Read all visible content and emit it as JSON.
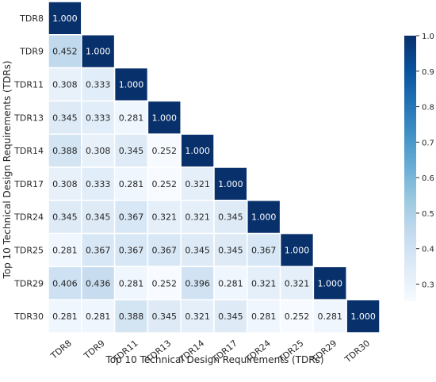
{
  "chart_data": {
    "type": "heatmap",
    "matrix_shape": "lower-triangular",
    "labels": [
      "TDR8",
      "TDR9",
      "TDR11",
      "TDR13",
      "TDR14",
      "TDR17",
      "TDR24",
      "TDR25",
      "TDR29",
      "TDR30"
    ],
    "values": [
      [
        1.0
      ],
      [
        0.452,
        1.0
      ],
      [
        0.308,
        0.333,
        1.0
      ],
      [
        0.345,
        0.333,
        0.281,
        1.0
      ],
      [
        0.388,
        0.308,
        0.345,
        0.252,
        1.0
      ],
      [
        0.308,
        0.333,
        0.281,
        0.252,
        0.321,
        1.0
      ],
      [
        0.345,
        0.345,
        0.367,
        0.321,
        0.321,
        0.345,
        1.0
      ],
      [
        0.281,
        0.367,
        0.367,
        0.367,
        0.345,
        0.345,
        0.367,
        1.0
      ],
      [
        0.406,
        0.436,
        0.281,
        0.252,
        0.396,
        0.281,
        0.321,
        0.321,
        1.0
      ],
      [
        0.281,
        0.281,
        0.388,
        0.345,
        0.321,
        0.345,
        0.281,
        0.252,
        0.281,
        1.0
      ]
    ],
    "value_labels": [
      [
        "1.000"
      ],
      [
        "0.452",
        "1.000"
      ],
      [
        "0.308",
        "0.333",
        "1.000"
      ],
      [
        "0.345",
        "0.333",
        "0.281",
        "1.000"
      ],
      [
        "0.388",
        "0.308",
        "0.345",
        "0.252",
        "1.000"
      ],
      [
        "0.308",
        "0.333",
        "0.281",
        "0.252",
        "0.321",
        "1.000"
      ],
      [
        "0.345",
        "0.345",
        "0.367",
        "0.321",
        "0.321",
        "0.345",
        "1.000"
      ],
      [
        "0.281",
        "0.367",
        "0.367",
        "0.367",
        "0.345",
        "0.345",
        "0.367",
        "1.000"
      ],
      [
        "0.406",
        "0.436",
        "0.281",
        "0.252",
        "0.396",
        "0.281",
        "0.321",
        "0.321",
        "1.000"
      ],
      [
        "0.281",
        "0.281",
        "0.388",
        "0.345",
        "0.321",
        "0.345",
        "0.281",
        "0.252",
        "0.281",
        "1.000"
      ]
    ],
    "xlabel": "Top 10 Technical Design Requirements (TDRs)",
    "ylabel": "Top 10 Technical Design Requirements (TDRs)",
    "colorbar": {
      "colormap": "Blues",
      "range": [
        0.252,
        1.0
      ],
      "ticks": [
        0.3,
        0.4,
        0.5,
        0.6,
        0.7,
        0.8,
        0.9,
        1.0
      ],
      "tick_labels": [
        "0.3",
        "0.4",
        "0.5",
        "0.6",
        "0.7",
        "0.8",
        "0.9",
        "1.0"
      ]
    },
    "colors": {
      "low": "#f7fbff",
      "mid": "#6baed6",
      "high": "#08306b",
      "cell_border": "#ffffff",
      "text_dark": "#262626",
      "text_light": "#ffffff"
    }
  }
}
